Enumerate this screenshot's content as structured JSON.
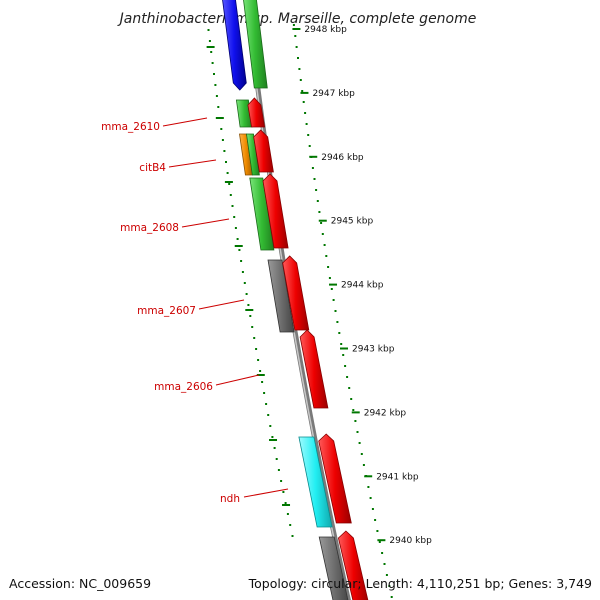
{
  "title": "Janthinobacterium sp. Marseille, complete genome",
  "footer": {
    "accession": "Accession: NC_009659",
    "summary": "Topology: circular; Length: 4,110,251 bp; Genes: 3,749"
  },
  "colors": {
    "backbone": "#808080",
    "tick": "#007700",
    "label": "#cc0000"
  },
  "ticks": [
    {
      "label": "2948 kbp"
    },
    {
      "label": "2947 kbp"
    },
    {
      "label": "2946 kbp"
    },
    {
      "label": "2945 kbp"
    },
    {
      "label": "2944 kbp"
    },
    {
      "label": "2943 kbp"
    },
    {
      "label": "2942 kbp"
    },
    {
      "label": "2941 kbp"
    },
    {
      "label": "2940 kbp"
    }
  ],
  "gene_labels": [
    "mma_2610",
    "citB4",
    "mma_2608",
    "mma_2607",
    "mma_2606",
    "ndh"
  ]
}
